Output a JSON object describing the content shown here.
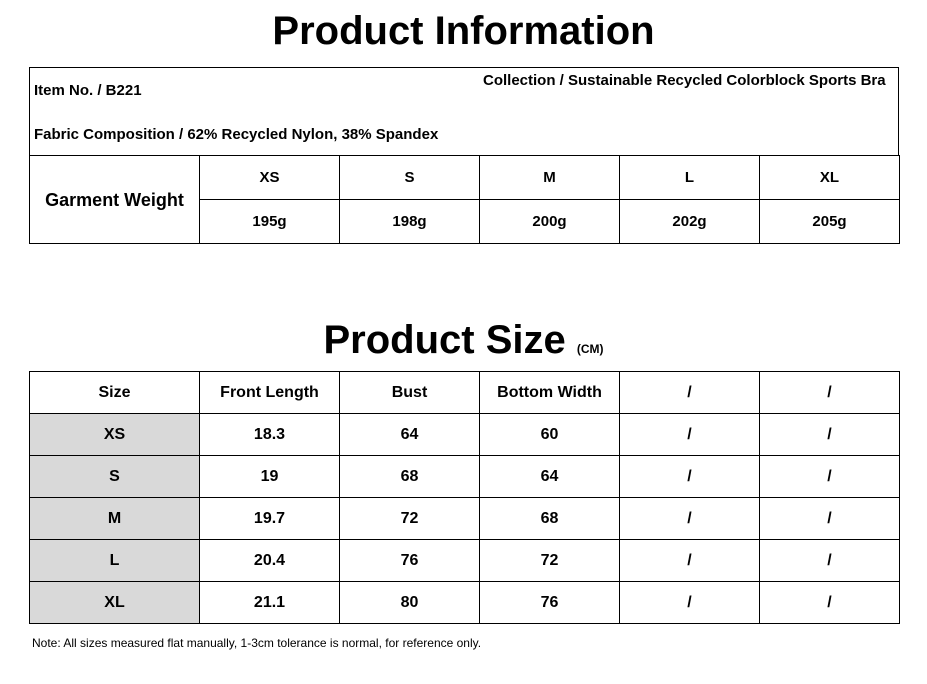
{
  "info_title": "Product Information",
  "info": {
    "item": "Item No. / B221",
    "collection": "Collection / Sustainable Recycled Colorblock Sports Bra",
    "fabric": "Fabric Composition / 62% Recycled Nylon, 38% Spandex"
  },
  "weight": {
    "label": "Garment Weight",
    "sizes": [
      "XS",
      "S",
      "M",
      "L",
      "XL"
    ],
    "weights": [
      "195g",
      "198g",
      "200g",
      "202g",
      "205g"
    ]
  },
  "size_title": "Product Size",
  "size_unit": "(CM)",
  "size_table": {
    "header": [
      "Size",
      "Front Length",
      "Bust",
      "Bottom Width",
      "/",
      "/"
    ],
    "rows": [
      [
        "XS",
        "18.3",
        "64",
        "60",
        "/",
        "/"
      ],
      [
        "S",
        "19",
        "68",
        "64",
        "/",
        "/"
      ],
      [
        "M",
        "19.7",
        "72",
        "68",
        "/",
        "/"
      ],
      [
        "L",
        "20.4",
        "76",
        "72",
        "/",
        "/"
      ],
      [
        "XL",
        "21.1",
        "80",
        "76",
        "/",
        "/"
      ]
    ]
  },
  "note": "Note: All sizes measured flat manually, 1-3cm tolerance is normal, for reference only."
}
